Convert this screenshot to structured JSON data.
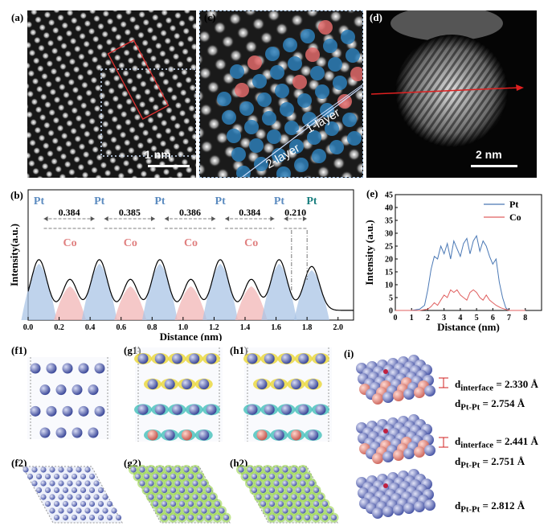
{
  "labels": {
    "a": "(a)",
    "c": "(c)",
    "d": "(d)",
    "b": "(b)",
    "e": "(e)",
    "f1": "(f1)",
    "g1": "(g1)",
    "h1": "(h1)",
    "f2": "(f2)",
    "g2": "(g2)",
    "h2": "(h2)",
    "i": "(i)"
  },
  "panel_a": {
    "scalebar": "1 nm"
  },
  "panel_c": {
    "layer1": "1-layer",
    "layer2": "2-layer"
  },
  "panel_d": {
    "scalebar": "2 nm"
  },
  "panel_i": {
    "rows": [
      {
        "d1_label": "d",
        "d1_sub": "interface",
        "d1_val": "= 2.330 Å",
        "d2_label": "d",
        "d2_sub": "Pt-Pt",
        "d2_val": "= 2.754 Å"
      },
      {
        "d1_label": "d",
        "d1_sub": "interface",
        "d1_val": "= 2.441 Å",
        "d2_label": "d",
        "d2_sub": "Pt-Pt",
        "d2_val": "= 2.751 Å"
      },
      {
        "d2_label": "d",
        "d2_sub": "Pt-Pt",
        "d2_val": "= 2.812 Å"
      }
    ]
  },
  "colors": {
    "pt": "#5b8bc0",
    "co": "#e08080",
    "teal": "#1a7f7f"
  },
  "chart_data": [
    {
      "type": "line",
      "panel": "b",
      "xlabel": "Distance (nm)",
      "ylabel": "Intensity(a.u.)",
      "xlim": [
        0,
        2.1
      ],
      "xticks": [
        "0.0",
        "0.2",
        "0.4",
        "0.6",
        "0.8",
        "1.0",
        "1.2",
        "1.4",
        "1.6",
        "1.8",
        "2.0"
      ],
      "atoms": [
        {
          "label": "Pt",
          "x": 0.07,
          "type": "pt"
        },
        {
          "label": "Co",
          "x": 0.27,
          "type": "co"
        },
        {
          "label": "Pt",
          "x": 0.46,
          "type": "pt"
        },
        {
          "label": "Co",
          "x": 0.66,
          "type": "co"
        },
        {
          "label": "Pt",
          "x": 0.85,
          "type": "pt"
        },
        {
          "label": "Co",
          "x": 1.05,
          "type": "co"
        },
        {
          "label": "Pt",
          "x": 1.24,
          "type": "pt"
        },
        {
          "label": "Co",
          "x": 1.44,
          "type": "co"
        },
        {
          "label": "Pt",
          "x": 1.62,
          "type": "pt"
        },
        {
          "label": "Pt",
          "x": 1.83,
          "type": "teal"
        }
      ],
      "spacings": [
        {
          "from": 0.07,
          "to": 0.46,
          "value": "0.384"
        },
        {
          "from": 0.46,
          "to": 0.85,
          "value": "0.385"
        },
        {
          "from": 0.85,
          "to": 1.24,
          "value": "0.386"
        },
        {
          "from": 1.24,
          "to": 1.62,
          "value": "0.384"
        },
        {
          "from": 1.62,
          "to": 1.83,
          "value": "0.210"
        }
      ]
    },
    {
      "type": "line",
      "panel": "e",
      "xlabel": "Distance (nm)",
      "ylabel": "Intensity (a.u.)",
      "xlim": [
        0,
        9
      ],
      "ylim": [
        0,
        45
      ],
      "xticks": [
        0,
        1,
        2,
        3,
        4,
        5,
        6,
        7,
        8
      ],
      "yticks": [
        0,
        5,
        10,
        15,
        20,
        25,
        30,
        35,
        40,
        45
      ],
      "legend": "top-right",
      "series": [
        {
          "name": "Pt",
          "color": "#4a78b5",
          "x": [
            0,
            0.5,
            1,
            1.5,
            1.8,
            2,
            2.2,
            2.4,
            2.6,
            2.8,
            3,
            3.2,
            3.4,
            3.6,
            3.8,
            4,
            4.2,
            4.4,
            4.6,
            4.8,
            5,
            5.2,
            5.4,
            5.6,
            5.8,
            6,
            6.2,
            6.4,
            6.6,
            6.8,
            7,
            7.5,
            8
          ],
          "y": [
            0,
            0,
            0,
            0.5,
            2,
            8,
            16,
            21,
            20,
            25,
            22,
            26,
            20,
            27,
            24,
            21,
            26,
            28,
            22,
            27,
            29,
            23,
            27,
            25,
            21,
            18,
            20,
            11,
            5,
            1,
            0,
            0,
            0
          ]
        },
        {
          "name": "Co",
          "color": "#e06060",
          "x": [
            0,
            0.5,
            1,
            1.5,
            2,
            2.2,
            2.4,
            2.6,
            2.8,
            3,
            3.2,
            3.4,
            3.6,
            3.8,
            4,
            4.2,
            4.4,
            4.6,
            4.8,
            5,
            5.2,
            5.4,
            5.6,
            5.8,
            6,
            6.2,
            6.5,
            7,
            7.5,
            8
          ],
          "y": [
            0,
            0,
            0,
            0,
            0.5,
            1.5,
            3,
            2,
            4,
            6,
            5,
            8,
            7,
            8,
            6,
            5,
            4,
            7,
            8,
            7,
            5,
            4,
            6,
            4,
            3,
            2,
            1,
            0,
            0,
            0
          ]
        }
      ]
    }
  ]
}
